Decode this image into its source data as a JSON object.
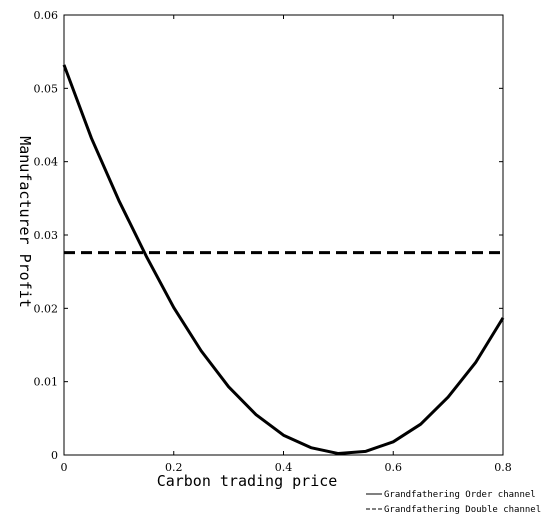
{
  "chart_data": {
    "type": "line",
    "title": "",
    "xlabel": "Carbon trading price",
    "ylabel": "Manufacturer Profit",
    "xlim": [
      0,
      0.8
    ],
    "ylim": [
      0,
      0.06
    ],
    "x_ticks": [
      "0",
      "0.2",
      "0.4",
      "0.6",
      "0.8"
    ],
    "y_ticks": [
      "0",
      "0.01",
      "0.02",
      "0.03",
      "0.04",
      "0.05",
      "0.06"
    ],
    "grid": false,
    "legend_position": "bottom-right",
    "series": [
      {
        "name": "Grandfathering Order channel",
        "style": "solid",
        "color": "#000000",
        "x": [
          0,
          0.05,
          0.1,
          0.15,
          0.2,
          0.25,
          0.3,
          0.35,
          0.4,
          0.45,
          0.5,
          0.55,
          0.6,
          0.65,
          0.7,
          0.75,
          0.8
        ],
        "y": [
          0.0532,
          0.0432,
          0.0347,
          0.0271,
          0.0201,
          0.0142,
          0.0093,
          0.0055,
          0.0027,
          0.001,
          0.0002,
          0.0005,
          0.0018,
          0.0042,
          0.0079,
          0.0126,
          0.0187
        ]
      },
      {
        "name": "Grandfathering Double channel",
        "style": "dashed",
        "color": "#000000",
        "x": [
          0,
          0.8
        ],
        "y": [
          0.0276,
          0.0276
        ]
      }
    ]
  }
}
